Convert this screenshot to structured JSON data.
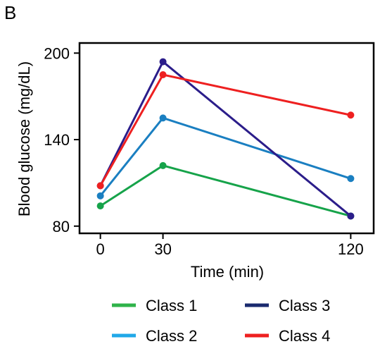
{
  "panel_label": "B",
  "chart_data": {
    "type": "line",
    "title": "",
    "xlabel": "Time (min)",
    "ylabel": "Blood glucose (mg/dL)",
    "x": [
      0,
      30,
      120
    ],
    "xticks": [
      0,
      30,
      120
    ],
    "yticks": [
      80,
      140,
      200
    ],
    "xlim": [
      -10,
      131
    ],
    "ylim": [
      75,
      207
    ],
    "grid": false,
    "legend_position": "bottom",
    "series": [
      {
        "name": "Class 1",
        "color": "#16a34a",
        "line_color": "#2fb34a",
        "values": [
          94,
          122,
          87
        ]
      },
      {
        "name": "Class 2",
        "color": "#1a7fc1",
        "line_color": "#20a8e8",
        "values": [
          101,
          155,
          113
        ]
      },
      {
        "name": "Class 3",
        "color": "#2b1d8a",
        "line_color": "#1a2a6e",
        "values": [
          108,
          194,
          87
        ]
      },
      {
        "name": "Class 4",
        "color": "#ee2020",
        "line_color": "#ee2020",
        "values": [
          108,
          185,
          157
        ]
      }
    ]
  }
}
